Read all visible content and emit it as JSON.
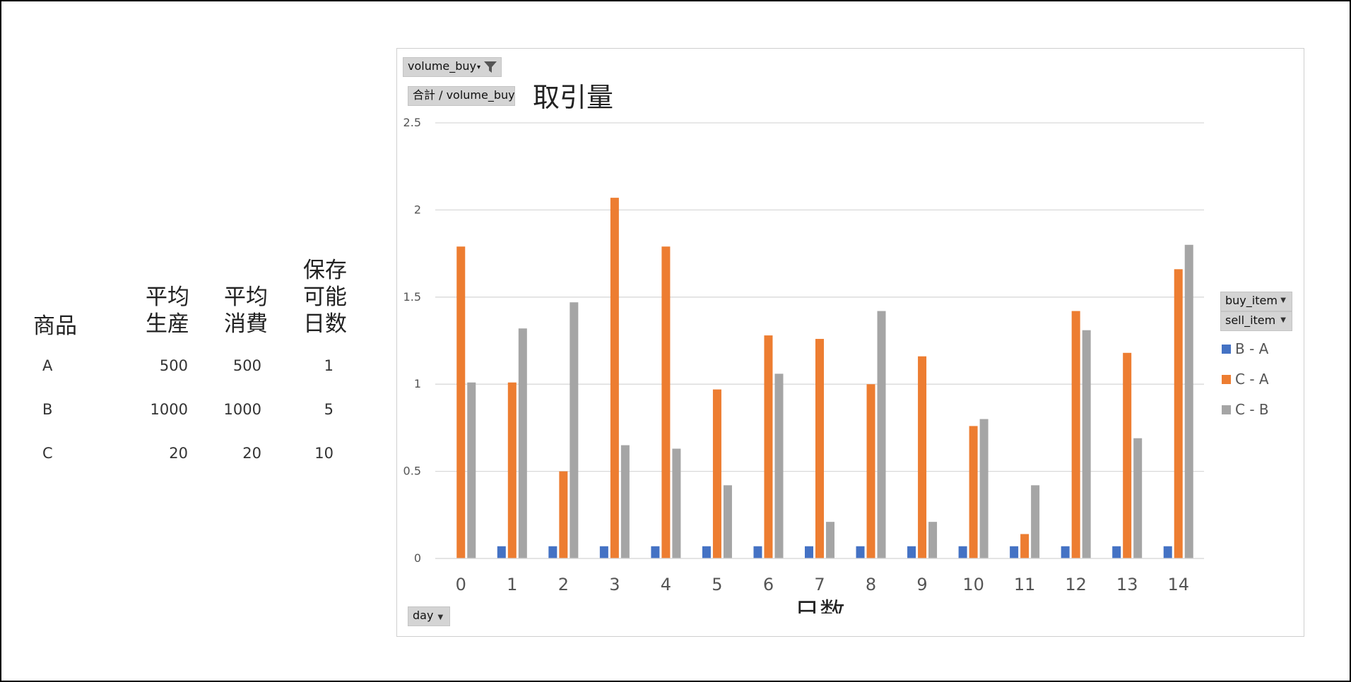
{
  "table": {
    "headers": {
      "product": "商品",
      "avg_production": "平均\n生産",
      "avg_consumption": "平均\n消費",
      "storable_days": "保存\n可能\n日数"
    },
    "rows": [
      {
        "product": "A",
        "avg_production": "500",
        "avg_consumption": "500",
        "storable_days": "1"
      },
      {
        "product": "B",
        "avg_production": "1000",
        "avg_consumption": "1000",
        "storable_days": "5"
      },
      {
        "product": "C",
        "avg_production": "20",
        "avg_consumption": "20",
        "storable_days": "10"
      }
    ]
  },
  "pivot": {
    "filter_label": "volume_buy",
    "value_label": "合計 / volume_buy",
    "axis_label": "day",
    "legend_field_1": "buy_item",
    "legend_field_2": "sell_item"
  },
  "colors": {
    "B - A": "#4472c4",
    "C - A": "#ed7d31",
    "C - B": "#a5a5a5",
    "gridline": "#d9d9d9"
  },
  "chart_data": {
    "type": "bar",
    "title": "取引量",
    "xlabel": "日数",
    "ylabel": "",
    "ylim": [
      0,
      2.5
    ],
    "yticks": [
      "0",
      "0.5",
      "1",
      "1.5",
      "2",
      "2.5"
    ],
    "categories": [
      "0",
      "1",
      "2",
      "3",
      "4",
      "5",
      "6",
      "7",
      "8",
      "9",
      "10",
      "11",
      "12",
      "13",
      "14"
    ],
    "series": [
      {
        "name": "B - A",
        "values": [
          0,
          0.07,
          0.07,
          0.07,
          0.07,
          0.07,
          0.07,
          0.07,
          0.07,
          0.07,
          0.07,
          0.07,
          0.07,
          0.07,
          0.07
        ]
      },
      {
        "name": "C - A",
        "values": [
          1.79,
          1.01,
          0.5,
          2.07,
          1.79,
          0.97,
          1.28,
          1.26,
          1.0,
          1.16,
          0.76,
          0.14,
          1.42,
          1.18,
          1.66
        ]
      },
      {
        "name": "C - B",
        "values": [
          1.01,
          1.32,
          1.47,
          0.65,
          0.63,
          0.42,
          1.06,
          0.21,
          1.42,
          0.21,
          0.8,
          0.42,
          1.31,
          0.69,
          1.8
        ]
      }
    ],
    "grid": true,
    "legend_position": "right"
  }
}
